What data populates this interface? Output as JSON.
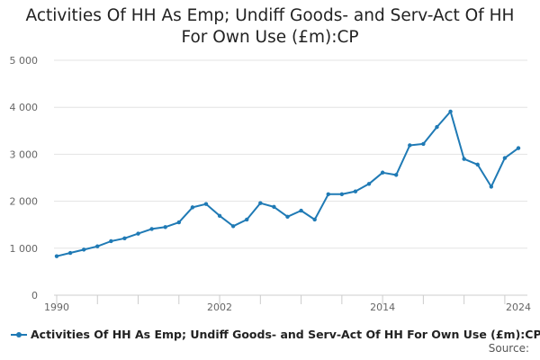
{
  "chart_data": {
    "type": "line",
    "title_lines": [
      "Activities Of HH As Emp; Undiff Goods- and Serv-Act Of HH",
      "For Own Use (£m):CP"
    ],
    "title": "Activities Of HH As Emp; Undiff Goods- and Serv-Act Of HH For Own Use (£m):CP",
    "xlabel": "",
    "ylabel": "",
    "xlim": [
      1990,
      2024
    ],
    "ylim": [
      0,
      5000
    ],
    "x_ticks": [
      1990,
      2002,
      2014,
      2024
    ],
    "x_minor_ticks": [
      1990,
      1993,
      1996,
      1999,
      2002,
      2005,
      2008,
      2011,
      2014,
      2017,
      2020,
      2023
    ],
    "y_ticks": [
      0,
      1000,
      2000,
      3000,
      4000,
      5000
    ],
    "y_tick_labels": [
      "0",
      "1 000",
      "2 000",
      "3 000",
      "4 000",
      "5 000"
    ],
    "grid": true,
    "legend_position": "bottom-left",
    "series": [
      {
        "name": "Activities Of HH As Emp; Undiff Goods- and Serv-Act Of HH For Own Use (£m):CP",
        "color": "#1f7ab5",
        "x": [
          1990,
          1991,
          1992,
          1993,
          1994,
          1995,
          1996,
          1997,
          1998,
          1999,
          2000,
          2001,
          2002,
          2003,
          2004,
          2005,
          2006,
          2007,
          2008,
          2009,
          2010,
          2011,
          2012,
          2013,
          2014,
          2015,
          2016,
          2017,
          2018,
          2019,
          2020,
          2021,
          2022,
          2023,
          2024
        ],
        "values": [
          830,
          900,
          970,
          1040,
          1150,
          1210,
          1310,
          1410,
          1450,
          1550,
          1870,
          1940,
          1690,
          1470,
          1610,
          1960,
          1880,
          1670,
          1800,
          1610,
          2150,
          2150,
          2210,
          2370,
          2610,
          2560,
          3190,
          3220,
          3580,
          3910,
          2900,
          2780,
          2310,
          2920,
          3130
        ]
      }
    ]
  },
  "source_label": "Source:"
}
